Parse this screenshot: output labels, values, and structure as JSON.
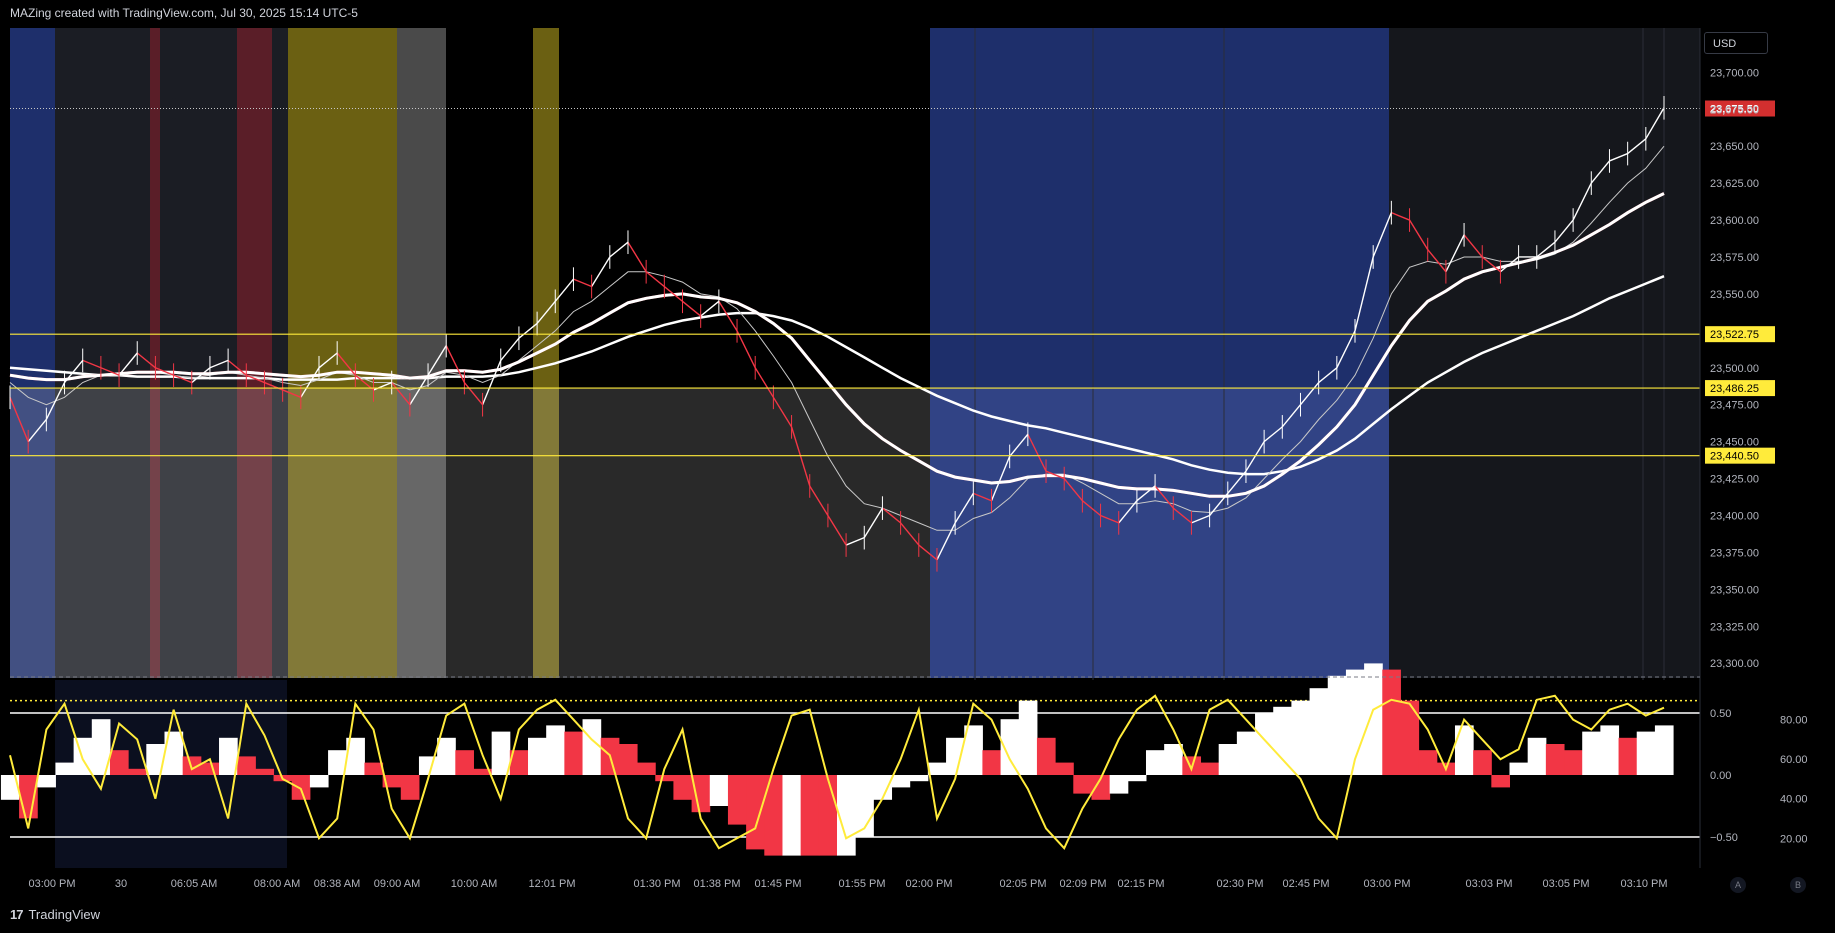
{
  "header": {
    "title": "MAZing created with TradingView.com, Jul 30, 2025 15:14 UTC-5"
  },
  "footer": {
    "brand": "TradingView"
  },
  "currency_button": "USD",
  "bottom_buttons": {
    "auto": "A",
    "log": "B"
  },
  "colors": {
    "up": "#ffffff",
    "down": "#f23645",
    "level": "#ffeb3b",
    "session_blue": "#1e2f6b",
    "session_yellow": "#6b6012",
    "session_red": "#5a1e28",
    "session_gray": "#3a3a3a"
  },
  "chart_data": [
    {
      "type": "line",
      "name": "price",
      "y_ticks": [
        "23,700.00",
        "23,675.00",
        "23,650.00",
        "23,625.00",
        "23,600.00",
        "23,575.00",
        "23,550.00",
        "23,525.00",
        "23,500.00",
        "23,475.00",
        "23,450.00",
        "23,425.00",
        "23,400.00",
        "23,375.00",
        "23,350.00",
        "23,325.00",
        "23,300.00"
      ],
      "x_ticks": [
        "03:00 PM",
        "30",
        "06:05 AM",
        "08:00 AM",
        "08:38 AM",
        "09:00 AM",
        "10:00 AM",
        "12:01 PM",
        "01:30 PM",
        "01:38 PM",
        "01:45 PM",
        "01:55 PM",
        "02:00 PM",
        "02:05 PM",
        "02:09 PM",
        "02:15 PM",
        "02:30 PM",
        "02:45 PM",
        "03:00 PM",
        "03:03 PM",
        "03:05 PM",
        "03:10 PM"
      ],
      "ylim": [
        23290,
        23730
      ],
      "last_price": {
        "label": "23,675.50",
        "value": 23675.5
      },
      "levels": [
        {
          "label": "23,522.75",
          "value": 23522.75
        },
        {
          "label": "23,486.25",
          "value": 23486.25
        },
        {
          "label": "23,440.50",
          "value": 23440.5
        }
      ],
      "close_series": [
        23480,
        23450,
        23465,
        23490,
        23505,
        23500,
        23495,
        23510,
        23500,
        23495,
        23490,
        23500,
        23505,
        23495,
        23490,
        23485,
        23480,
        23500,
        23510,
        23495,
        23485,
        23490,
        23475,
        23495,
        23515,
        23490,
        23475,
        23505,
        23520,
        23530,
        23545,
        23560,
        23555,
        23575,
        23585,
        23565,
        23555,
        23545,
        23535,
        23545,
        23525,
        23500,
        23480,
        23460,
        23420,
        23400,
        23380,
        23385,
        23405,
        23395,
        23380,
        23370,
        23395,
        23415,
        23410,
        23440,
        23455,
        23430,
        23425,
        23410,
        23400,
        23395,
        23410,
        23420,
        23405,
        23395,
        23400,
        23415,
        23430,
        23450,
        23460,
        23475,
        23490,
        23500,
        23525,
        23575,
        23605,
        23600,
        23580,
        23565,
        23590,
        23575,
        23565,
        23575,
        23575,
        23585,
        23600,
        23625,
        23640,
        23645,
        23655,
        23676
      ],
      "ma_fast": [
        23490,
        23480,
        23475,
        23480,
        23490,
        23495,
        23495,
        23497,
        23497,
        23495,
        23493,
        23495,
        23497,
        23495,
        23493,
        23490,
        23488,
        23492,
        23497,
        23495,
        23490,
        23490,
        23485,
        23488,
        23497,
        23495,
        23490,
        23495,
        23505,
        23515,
        23525,
        23538,
        23545,
        23555,
        23565,
        23565,
        23562,
        23558,
        23550,
        23548,
        23540,
        23525,
        23508,
        23490,
        23465,
        23440,
        23420,
        23408,
        23405,
        23400,
        23395,
        23390,
        23390,
        23398,
        23402,
        23412,
        23425,
        23428,
        23428,
        23422,
        23415,
        23408,
        23408,
        23410,
        23408,
        23403,
        23402,
        23405,
        23412,
        23425,
        23438,
        23450,
        23465,
        23478,
        23495,
        23520,
        23550,
        23568,
        23572,
        23570,
        23575,
        23575,
        23572,
        23572,
        23573,
        23577,
        23585,
        23598,
        23612,
        23625,
        23635,
        23650
      ],
      "ma_mid": [
        23495,
        23493,
        23492,
        23492,
        23494,
        23495,
        23496,
        23497,
        23497,
        23497,
        23496,
        23496,
        23497,
        23497,
        23496,
        23495,
        23494,
        23495,
        23497,
        23497,
        23496,
        23495,
        23493,
        23494,
        23498,
        23498,
        23497,
        23499,
        23504,
        23510,
        23516,
        23524,
        23530,
        23537,
        23544,
        23547,
        23549,
        23550,
        23548,
        23547,
        23544,
        23538,
        23530,
        23520,
        23505,
        23490,
        23475,
        23462,
        23452,
        23444,
        23437,
        23430,
        23426,
        23424,
        23422,
        23423,
        23426,
        23427,
        23427,
        23425,
        23422,
        23419,
        23418,
        23418,
        23417,
        23415,
        23413,
        23413,
        23415,
        23420,
        23428,
        23437,
        23448,
        23460,
        23475,
        23495,
        23515,
        23532,
        23545,
        23552,
        23560,
        23565,
        23568,
        23571,
        23574,
        23578,
        23583,
        23590,
        23597,
        23605,
        23612,
        23618
      ],
      "ma_slow": [
        23500,
        23499,
        23498,
        23497,
        23496,
        23495,
        23495,
        23494,
        23494,
        23494,
        23493,
        23493,
        23493,
        23493,
        23493,
        23492,
        23492,
        23492,
        23492,
        23493,
        23493,
        23493,
        23493,
        23493,
        23494,
        23494,
        23494,
        23495,
        23497,
        23500,
        23503,
        23507,
        23511,
        23516,
        23521,
        23525,
        23529,
        23532,
        23534,
        23536,
        23537,
        23537,
        23535,
        23532,
        23527,
        23521,
        23514,
        23507,
        23500,
        23493,
        23487,
        23481,
        23476,
        23471,
        23467,
        23464,
        23461,
        23459,
        23456,
        23453,
        23450,
        23447,
        23444,
        23441,
        23438,
        23434,
        23431,
        23429,
        23428,
        23428,
        23430,
        23433,
        23438,
        23444,
        23452,
        23462,
        23472,
        23481,
        23490,
        23497,
        23504,
        23510,
        23515,
        23520,
        23525,
        23530,
        23535,
        23541,
        23547,
        23552,
        23557,
        23562
      ]
    },
    {
      "type": "bar",
      "name": "oscillator",
      "left_ticks": [
        "0.50",
        "0.00",
        "−0.50"
      ],
      "right_ticks": [
        "80.00",
        "60.00",
        "40.00",
        "20.00"
      ],
      "hist": [
        -0.2,
        -0.35,
        -0.1,
        0.1,
        0.3,
        0.45,
        0.2,
        0.05,
        0.25,
        0.35,
        0.15,
        0.1,
        0.3,
        0.15,
        0.05,
        -0.05,
        -0.2,
        -0.1,
        0.2,
        0.3,
        0.1,
        -0.1,
        -0.2,
        0.15,
        0.3,
        0.2,
        0.05,
        0.35,
        0.2,
        0.3,
        0.4,
        0.35,
        0.45,
        0.3,
        0.25,
        0.1,
        -0.05,
        -0.2,
        -0.3,
        -0.25,
        -0.4,
        -0.6,
        -0.7,
        -0.65,
        -0.8,
        -0.9,
        -0.75,
        -0.5,
        -0.2,
        -0.1,
        -0.05,
        0.1,
        0.3,
        0.4,
        0.2,
        0.45,
        0.6,
        0.3,
        0.1,
        -0.15,
        -0.2,
        -0.15,
        -0.05,
        0.2,
        0.25,
        0.15,
        0.1,
        0.25,
        0.35,
        0.5,
        0.55,
        0.6,
        0.7,
        0.8,
        0.85,
        0.9,
        0.85,
        0.6,
        0.2,
        0.1,
        0.4,
        0.2,
        -0.1,
        0.1,
        0.3,
        0.25,
        0.2,
        0.35,
        0.4,
        0.3,
        0.35,
        0.4
      ],
      "line": [
        62,
        25,
        75,
        88,
        60,
        45,
        78,
        70,
        40,
        85,
        55,
        60,
        30,
        88,
        72,
        50,
        45,
        20,
        30,
        88,
        75,
        35,
        20,
        50,
        82,
        88,
        62,
        40,
        75,
        85,
        90,
        80,
        70,
        62,
        30,
        20,
        55,
        75,
        30,
        15,
        20,
        25,
        55,
        82,
        85,
        50,
        20,
        25,
        40,
        60,
        85,
        30,
        50,
        88,
        80,
        60,
        45,
        25,
        15,
        35,
        50,
        70,
        85,
        92,
        75,
        55,
        85,
        90,
        80,
        70,
        60,
        50,
        30,
        20,
        60,
        85,
        90,
        88,
        75,
        55,
        80,
        70,
        60,
        65,
        90,
        92,
        80,
        75,
        85,
        88,
        82,
        86
      ]
    }
  ]
}
